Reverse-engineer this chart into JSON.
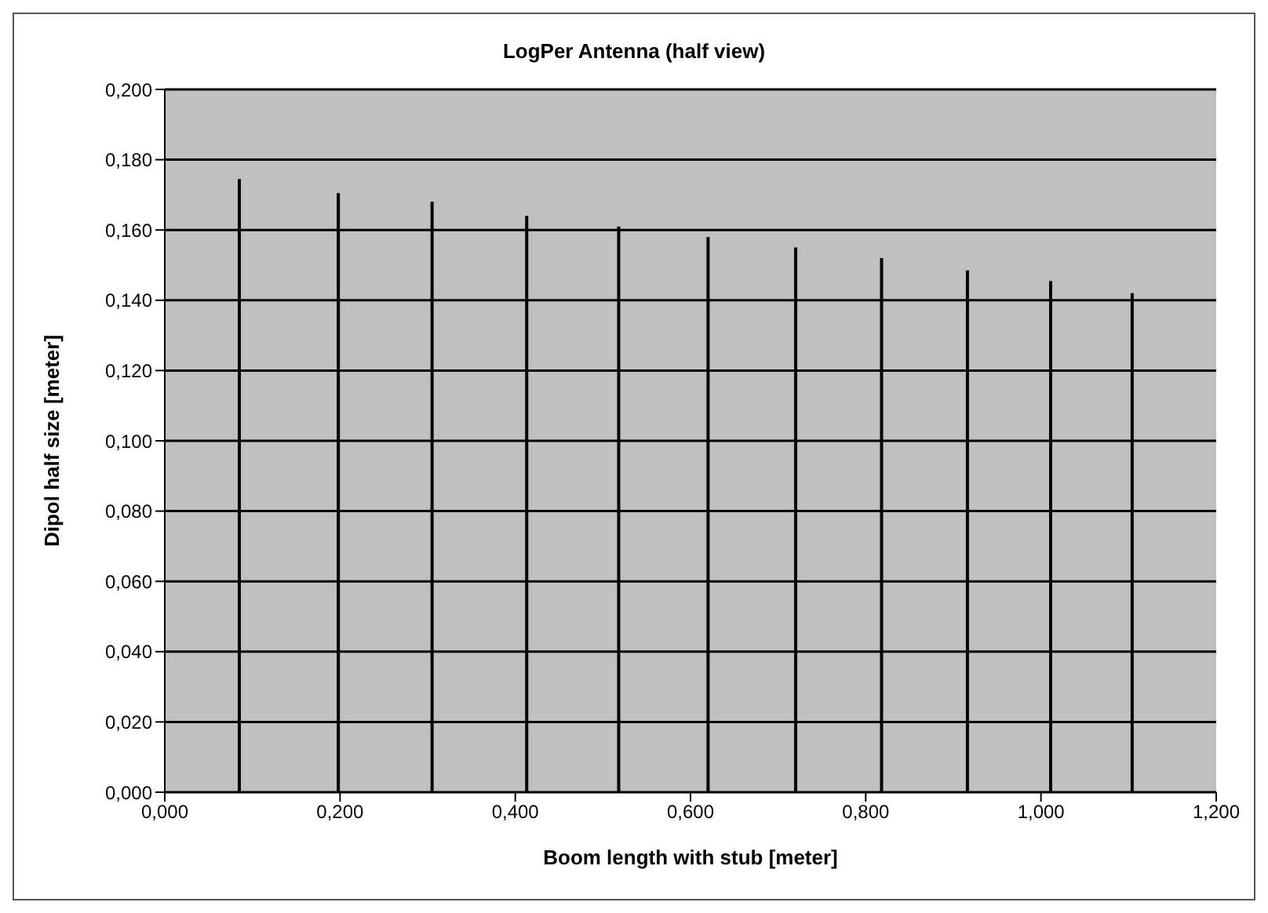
{
  "chart_data": {
    "type": "bar",
    "title": "LogPer Antenna (half view)",
    "xlabel": "Boom length with stub [meter]",
    "ylabel": "Dipol half size  [meter]",
    "x": [
      0.085,
      0.198,
      0.305,
      0.413,
      0.518,
      0.62,
      0.72,
      0.818,
      0.916,
      1.011,
      1.104
    ],
    "series": [
      {
        "color": "#000000",
        "values": [
          0.1745,
          0.1705,
          0.168,
          0.164,
          0.161,
          0.158,
          0.155,
          0.152,
          0.1485,
          0.1455,
          0.142
        ]
      }
    ],
    "grid": "y",
    "legend": false,
    "xlim": [
      0,
      1.2
    ],
    "xticks": [
      {
        "value": 0,
        "label": "0,000"
      },
      {
        "value": 0.2,
        "label": "0,200"
      },
      {
        "value": 0.4,
        "label": "0,400"
      },
      {
        "value": 0.6,
        "label": "0,600"
      },
      {
        "value": 0.8,
        "label": "0,800"
      },
      {
        "value": 1,
        "label": "1,000"
      },
      {
        "value": 1.2,
        "label": "1,200"
      }
    ],
    "ylim": [
      0,
      0.2
    ],
    "yticks": [
      {
        "value": 0,
        "label": "0,000"
      },
      {
        "value": 0.02,
        "label": "0,020"
      },
      {
        "value": 0.04,
        "label": "0,040"
      },
      {
        "value": 0.06,
        "label": "0,060"
      },
      {
        "value": 0.08,
        "label": "0,080"
      },
      {
        "value": 0.1,
        "label": "0,100"
      },
      {
        "value": 0.12,
        "label": "0,120"
      },
      {
        "value": 0.14,
        "label": "0,140"
      },
      {
        "value": 0.16,
        "label": "0,160"
      },
      {
        "value": 0.18,
        "label": "0,180"
      },
      {
        "value": 0.2,
        "label": "0,200"
      }
    ]
  }
}
